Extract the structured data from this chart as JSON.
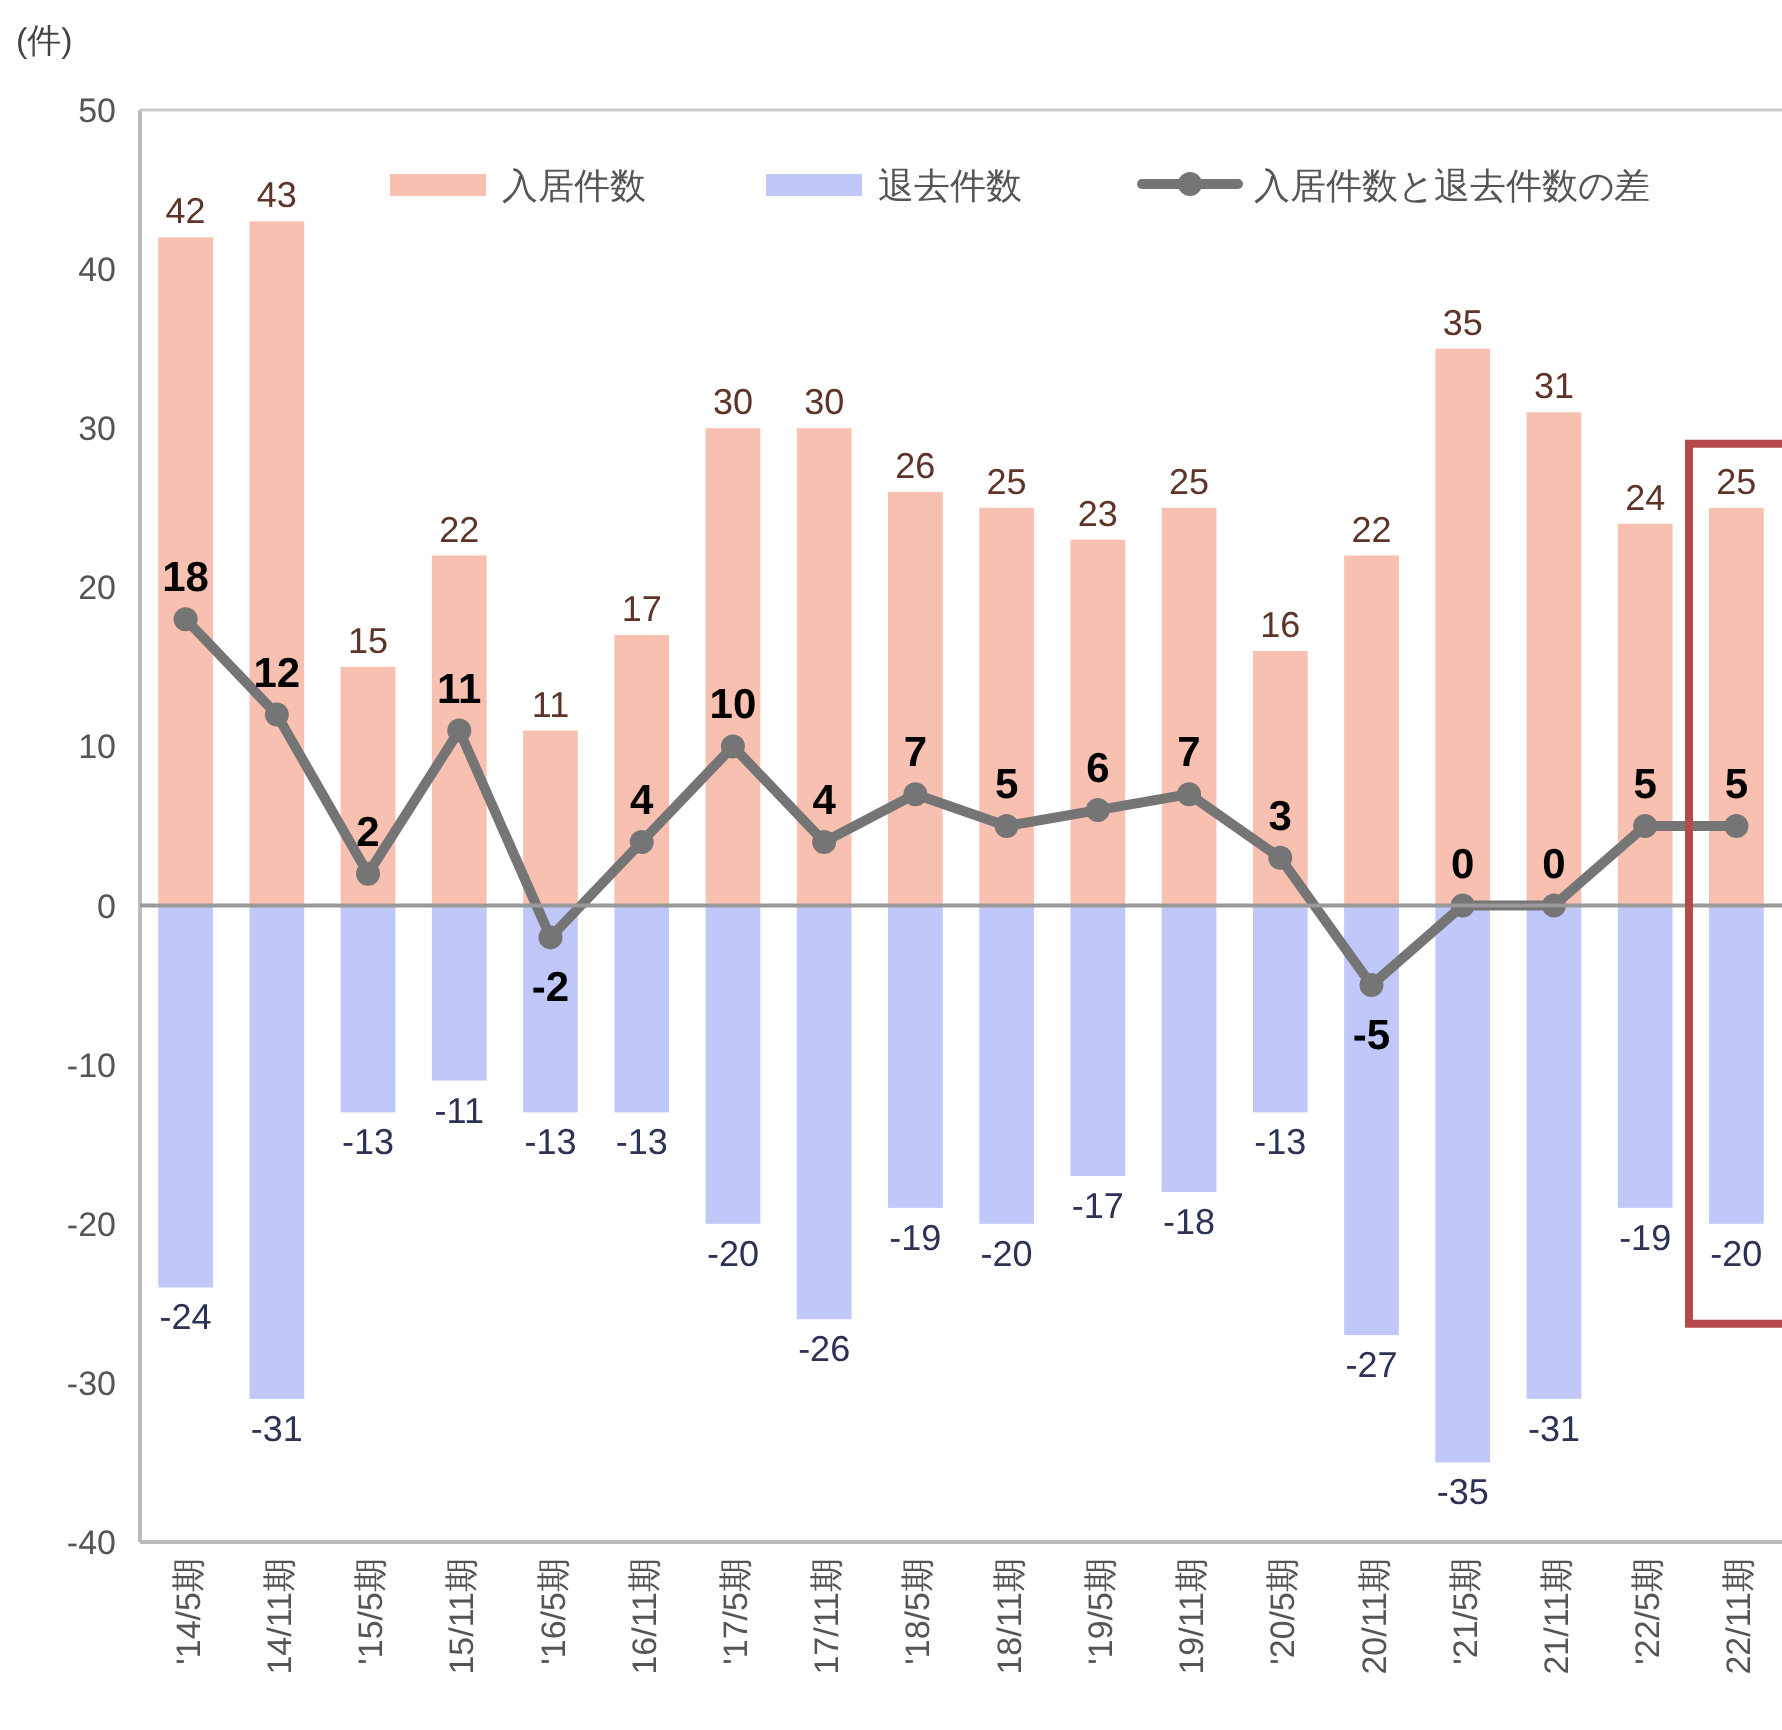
{
  "chart_data": {
    "type": "bar",
    "ylabel": "(件)",
    "stacked": true,
    "data_labels": true,
    "legend": "top",
    "marker": "circle",
    "line_style": "solid",
    "ylim": [
      -40,
      50
    ],
    "yticks": [
      -40,
      -30,
      -20,
      -10,
      0,
      10,
      20,
      30,
      40,
      50
    ],
    "categories": [
      "'14/5期",
      "14/11期",
      "'15/5期",
      "15/11期",
      "'16/5期",
      "16/11期",
      "'17/5期",
      "17/11期",
      "'18/5期",
      "18/11期",
      "'19/5期",
      "19/11期",
      "'20/5期",
      "20/11期",
      "'21/5期",
      "21/11期",
      "'22/5期",
      "22/11期"
    ],
    "series": [
      {
        "name": "入居件数",
        "color": "#f8c0b0",
        "values": [
          42,
          43,
          15,
          22,
          11,
          17,
          30,
          30,
          26,
          25,
          23,
          25,
          16,
          22,
          35,
          31,
          24,
          25
        ]
      },
      {
        "name": "退去件数",
        "color": "#bfc8f8",
        "values": [
          -24,
          -31,
          -13,
          -11,
          -13,
          -13,
          -20,
          -26,
          -19,
          -20,
          -17,
          -18,
          -13,
          -27,
          -35,
          -31,
          -19,
          -20
        ]
      },
      {
        "name": "入居件数と退去件数の差",
        "type": "line",
        "color": "#757575",
        "values": [
          18,
          12,
          2,
          11,
          -2,
          4,
          10,
          4,
          7,
          5,
          6,
          7,
          3,
          -5,
          0,
          0,
          5,
          5
        ]
      }
    ]
  }
}
